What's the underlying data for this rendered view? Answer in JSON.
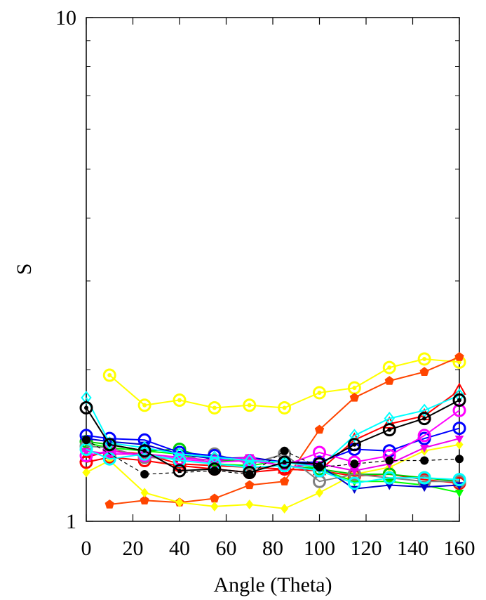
{
  "chart_data": {
    "type": "line",
    "xlabel": "Angle (Theta)",
    "ylabel": "S",
    "xlim": [
      0,
      160
    ],
    "ylim": [
      1,
      10
    ],
    "yscale": "log",
    "grid": false,
    "legend": "none",
    "x_ticks": [
      0,
      20,
      40,
      60,
      80,
      100,
      120,
      140,
      160
    ],
    "x_tick_labels": [
      "0",
      "20",
      "40",
      "60",
      "80",
      "100",
      "120",
      "140",
      "160"
    ],
    "y_ticks": [
      1,
      10
    ],
    "y_tick_labels": [
      "1",
      "10"
    ],
    "y_minor_ticks": [
      2,
      3,
      4,
      5,
      6,
      7,
      8,
      9
    ],
    "series": [
      {
        "color": "#FFFF00",
        "marker": "circle-dot",
        "x": [
          10,
          25,
          40,
          55,
          70,
          85,
          100,
          115,
          130,
          145,
          160
        ],
        "y": [
          1.95,
          1.7,
          1.74,
          1.68,
          1.7,
          1.68,
          1.8,
          1.84,
          2.02,
          2.1,
          2.07
        ]
      },
      {
        "color": "#FF4500",
        "marker": "pentagon",
        "x": [
          10,
          25,
          40,
          55,
          70,
          85,
          100,
          115,
          130,
          145,
          160
        ],
        "y": [
          1.08,
          1.1,
          1.09,
          1.11,
          1.18,
          1.2,
          1.52,
          1.76,
          1.9,
          1.98,
          2.12
        ]
      },
      {
        "color": "#FFFF00",
        "marker": "diamond",
        "x": [
          0,
          10,
          25,
          40,
          55,
          70,
          85,
          100,
          115,
          130,
          145,
          160
        ],
        "y": [
          1.25,
          1.32,
          1.14,
          1.09,
          1.07,
          1.08,
          1.06,
          1.14,
          1.24,
          1.28,
          1.38,
          1.42
        ]
      },
      {
        "color": "#FF0000",
        "marker": "triangle-up-open",
        "x": [
          0,
          10,
          25,
          40,
          55,
          70,
          85,
          100,
          115,
          130,
          145,
          160
        ],
        "y": [
          1.34,
          1.38,
          1.36,
          1.3,
          1.29,
          1.28,
          1.27,
          1.26,
          1.45,
          1.56,
          1.62,
          1.82
        ]
      },
      {
        "color": "#FF0000",
        "marker": "circle-open",
        "x": [
          0,
          10,
          25,
          40,
          55,
          70,
          85,
          100,
          115,
          130,
          145,
          160
        ],
        "y": [
          1.31,
          1.34,
          1.32,
          1.29,
          1.27,
          1.25,
          1.27,
          1.26,
          1.23,
          1.24,
          1.21,
          1.19
        ]
      },
      {
        "color": "#00FF00",
        "marker": "triangle-down",
        "x": [
          0,
          10,
          25,
          40,
          55,
          70,
          85,
          100,
          115,
          130,
          145,
          160
        ],
        "y": [
          1.43,
          1.4,
          1.38,
          1.36,
          1.3,
          1.29,
          1.32,
          1.27,
          1.2,
          1.2,
          1.18,
          1.14
        ]
      },
      {
        "color": "#00CC00",
        "marker": "circle-open",
        "x": [
          0,
          10,
          25,
          40,
          55,
          70,
          85,
          100,
          115,
          130,
          145,
          160
        ],
        "y": [
          1.44,
          1.42,
          1.38,
          1.39,
          1.32,
          1.32,
          1.29,
          1.27,
          1.24,
          1.24,
          1.22,
          1.2
        ]
      },
      {
        "color": "#808080",
        "marker": "circle-open",
        "x": [
          0,
          10,
          25,
          40,
          55,
          70,
          85,
          100,
          115,
          130,
          145,
          160
        ],
        "y": [
          1.41,
          1.4,
          1.34,
          1.33,
          1.36,
          1.3,
          1.36,
          1.2,
          1.24,
          1.22,
          1.2,
          1.2
        ]
      },
      {
        "color": "#0000CC",
        "marker": "triangle-down",
        "x": [
          0,
          10,
          25,
          40,
          55,
          70,
          85,
          100,
          115,
          130,
          145,
          160
        ],
        "y": [
          1.46,
          1.44,
          1.42,
          1.36,
          1.33,
          1.34,
          1.31,
          1.29,
          1.16,
          1.18,
          1.17,
          1.18
        ]
      },
      {
        "color": "#0000FF",
        "marker": "circle-open",
        "x": [
          0,
          10,
          25,
          40,
          55,
          70,
          85,
          100,
          115,
          130,
          145,
          160
        ],
        "y": [
          1.48,
          1.46,
          1.45,
          1.37,
          1.35,
          1.32,
          1.31,
          1.31,
          1.39,
          1.38,
          1.46,
          1.53
        ]
      },
      {
        "color": "#FF00FF",
        "marker": "circle-open",
        "x": [
          0,
          10,
          25,
          40,
          55,
          70,
          85,
          100,
          115,
          130,
          145,
          160
        ],
        "y": [
          1.35,
          1.38,
          1.35,
          1.33,
          1.31,
          1.32,
          1.29,
          1.37,
          1.31,
          1.35,
          1.48,
          1.66
        ]
      },
      {
        "color": "#EE00EE",
        "marker": "triangle-down",
        "x": [
          0,
          10,
          25,
          40,
          55,
          70,
          85,
          100,
          115,
          130,
          145,
          160
        ],
        "y": [
          1.38,
          1.36,
          1.36,
          1.34,
          1.32,
          1.34,
          1.28,
          1.3,
          1.26,
          1.3,
          1.4,
          1.46
        ]
      },
      {
        "color": "#00FFFF",
        "marker": "diamond-open",
        "x": [
          0,
          10,
          25,
          40,
          55,
          70,
          85,
          100,
          115,
          130,
          145,
          160
        ],
        "y": [
          1.76,
          1.43,
          1.4,
          1.36,
          1.34,
          1.32,
          1.31,
          1.28,
          1.48,
          1.6,
          1.66,
          1.78
        ]
      },
      {
        "color": "#00FFFF",
        "marker": "circle-open",
        "x": [
          0,
          10,
          25,
          40,
          55,
          70,
          85,
          100,
          115,
          130,
          145,
          160
        ],
        "y": [
          1.39,
          1.33,
          1.36,
          1.32,
          1.3,
          1.28,
          1.29,
          1.26,
          1.19,
          1.22,
          1.22,
          1.21
        ]
      },
      {
        "color": "#000000",
        "marker": "circle-dot",
        "x": [
          0,
          10,
          25,
          40,
          55,
          70,
          85,
          100,
          115,
          130,
          145,
          160
        ],
        "y": [
          1.68,
          1.42,
          1.38,
          1.26,
          1.27,
          1.25,
          1.31,
          1.3,
          1.42,
          1.52,
          1.6,
          1.74
        ]
      },
      {
        "color": "#000000",
        "marker": "circle",
        "dashed": true,
        "x": [
          0,
          25,
          55,
          70,
          85,
          100,
          115,
          130,
          145,
          160
        ],
        "y": [
          1.45,
          1.24,
          1.26,
          1.24,
          1.38,
          1.28,
          1.3,
          1.32,
          1.32,
          1.33
        ]
      }
    ]
  }
}
